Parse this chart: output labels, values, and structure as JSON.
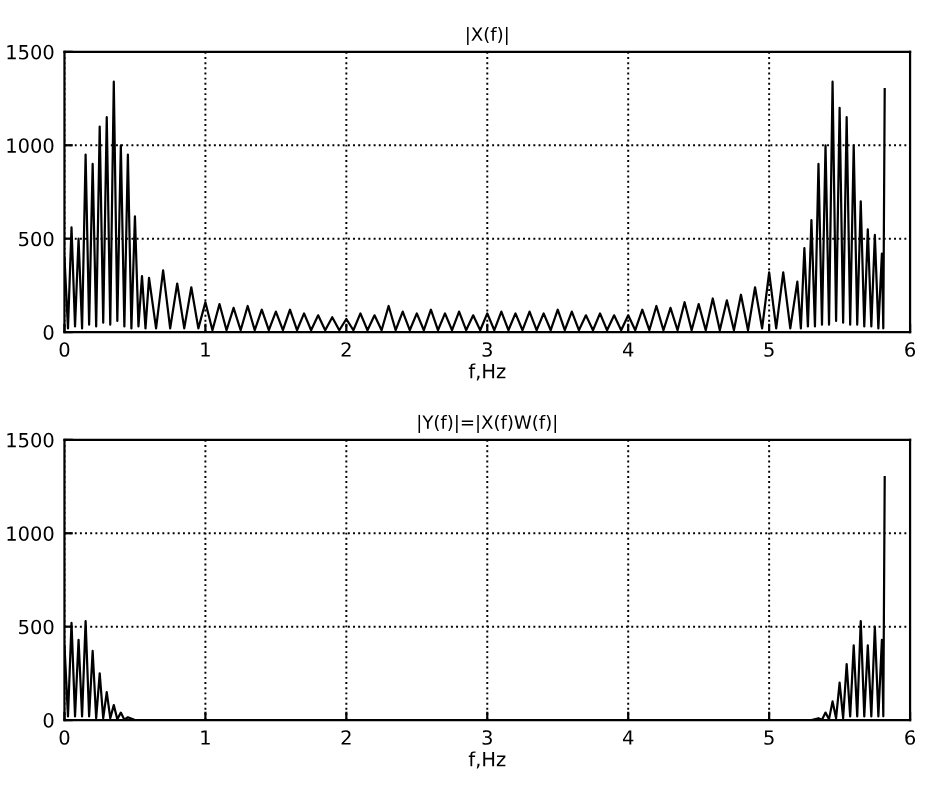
{
  "chart_data": [
    {
      "type": "line",
      "title": "|X(f)|",
      "xlabel": "f,Hz",
      "xlim": [
        0,
        6
      ],
      "ylim": [
        0,
        1500
      ],
      "xticks": [
        0,
        1,
        2,
        3,
        4,
        5,
        6
      ],
      "yticks": [
        0,
        500,
        1000,
        1500
      ],
      "grid": true,
      "line_style": "solid",
      "series": [
        {
          "color": "#000000",
          "x": [
            0,
            0.025,
            0.05,
            0.075,
            0.1,
            0.125,
            0.15,
            0.175,
            0.2,
            0.225,
            0.25,
            0.275,
            0.3,
            0.325,
            0.35,
            0.375,
            0.4,
            0.425,
            0.45,
            0.475,
            0.5,
            0.525,
            0.55,
            0.575,
            0.6,
            0.65,
            0.7,
            0.75,
            0.8,
            0.85,
            0.9,
            0.95,
            1.0,
            1.05,
            1.1,
            1.15,
            1.2,
            1.25,
            1.3,
            1.35,
            1.4,
            1.45,
            1.5,
            1.55,
            1.6,
            1.65,
            1.7,
            1.75,
            1.8,
            1.85,
            1.9,
            1.95,
            2.0,
            2.05,
            2.1,
            2.15,
            2.2,
            2.25,
            2.3,
            2.35,
            2.4,
            2.45,
            2.5,
            2.55,
            2.6,
            2.65,
            2.7,
            2.75,
            2.8,
            2.85,
            2.9,
            2.95,
            3.0,
            3.05,
            3.1,
            3.15,
            3.2,
            3.25,
            3.3,
            3.35,
            3.4,
            3.45,
            3.5,
            3.55,
            3.6,
            3.65,
            3.7,
            3.75,
            3.8,
            3.85,
            3.9,
            3.95,
            4.0,
            4.05,
            4.1,
            4.15,
            4.2,
            4.25,
            4.3,
            4.35,
            4.4,
            4.45,
            4.5,
            4.55,
            4.6,
            4.65,
            4.7,
            4.75,
            4.8,
            4.85,
            4.9,
            4.95,
            5.0,
            5.05,
            5.1,
            5.15,
            5.2,
            5.225,
            5.25,
            5.275,
            5.3,
            5.325,
            5.35,
            5.375,
            5.4,
            5.425,
            5.45,
            5.475,
            5.5,
            5.525,
            5.55,
            5.575,
            5.6,
            5.625,
            5.65,
            5.675,
            5.7,
            5.725,
            5.75,
            5.775,
            5.8,
            5.81,
            5.82
          ],
          "values": [
            400,
            20,
            560,
            30,
            500,
            20,
            950,
            40,
            900,
            30,
            1100,
            50,
            1150,
            40,
            1340,
            60,
            1000,
            30,
            950,
            20,
            620,
            30,
            300,
            20,
            290,
            20,
            330,
            20,
            260,
            20,
            240,
            20,
            160,
            10,
            150,
            10,
            130,
            10,
            140,
            10,
            120,
            10,
            110,
            10,
            120,
            10,
            100,
            10,
            90,
            10,
            80,
            10,
            70,
            10,
            100,
            10,
            90,
            10,
            140,
            10,
            110,
            10,
            100,
            10,
            120,
            10,
            100,
            10,
            110,
            10,
            90,
            10,
            100,
            10,
            110,
            10,
            100,
            10,
            110,
            10,
            100,
            10,
            120,
            10,
            110,
            10,
            90,
            10,
            100,
            10,
            90,
            10,
            90,
            10,
            120,
            10,
            140,
            10,
            130,
            10,
            160,
            10,
            150,
            10,
            180,
            10,
            170,
            10,
            200,
            10,
            240,
            20,
            320,
            20,
            320,
            20,
            270,
            20,
            450,
            30,
            600,
            30,
            900,
            40,
            1000,
            40,
            1340,
            60,
            1200,
            50,
            1150,
            40,
            1000,
            40,
            700,
            30,
            550,
            30,
            520,
            20,
            420,
            20,
            1300
          ]
        }
      ]
    },
    {
      "type": "line",
      "title": "|Y(f)|=|X(f)W(f)|",
      "xlabel": "f,Hz",
      "xlim": [
        0,
        6
      ],
      "ylim": [
        0,
        1500
      ],
      "xticks": [
        0,
        1,
        2,
        3,
        4,
        5,
        6
      ],
      "yticks": [
        0,
        500,
        1000,
        1500
      ],
      "grid": true,
      "line_style": "solid",
      "series": [
        {
          "color": "#000000",
          "x": [
            0,
            0.025,
            0.05,
            0.075,
            0.1,
            0.125,
            0.15,
            0.175,
            0.2,
            0.225,
            0.25,
            0.275,
            0.3,
            0.325,
            0.35,
            0.375,
            0.4,
            0.425,
            0.45,
            0.5,
            1.0,
            2.0,
            3.0,
            4.0,
            5.0,
            5.3,
            5.35,
            5.375,
            5.4,
            5.425,
            5.45,
            5.475,
            5.5,
            5.525,
            5.55,
            5.575,
            5.6,
            5.625,
            5.65,
            5.675,
            5.7,
            5.725,
            5.75,
            5.775,
            5.8,
            5.81,
            5.82
          ],
          "values": [
            400,
            20,
            520,
            20,
            430,
            20,
            530,
            20,
            370,
            10,
            250,
            10,
            150,
            10,
            80,
            5,
            40,
            2,
            15,
            0,
            0,
            0,
            0,
            0,
            0,
            0,
            10,
            2,
            40,
            5,
            100,
            10,
            200,
            10,
            300,
            20,
            400,
            20,
            530,
            20,
            400,
            20,
            500,
            20,
            430,
            20,
            1300
          ]
        }
      ]
    }
  ]
}
